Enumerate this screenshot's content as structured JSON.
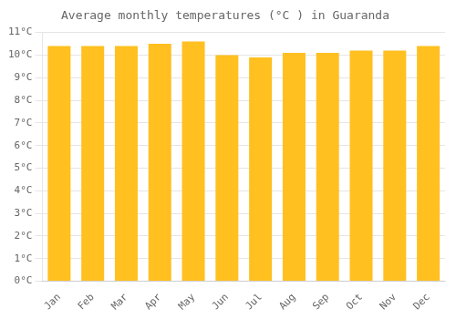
{
  "chart_data": {
    "type": "bar",
    "title": "Average monthly temperatures (°C ) in Guaranda",
    "categories": [
      "Jan",
      "Feb",
      "Mar",
      "Apr",
      "May",
      "Jun",
      "Jul",
      "Aug",
      "Sep",
      "Oct",
      "Nov",
      "Dec"
    ],
    "values": [
      10.4,
      10.4,
      10.4,
      10.5,
      10.6,
      10.0,
      9.9,
      10.1,
      10.1,
      10.2,
      10.2,
      10.4
    ],
    "color": "#FFC020",
    "ylim": [
      0,
      11
    ],
    "yticks": [
      {
        "value": 0,
        "label": "0°C"
      },
      {
        "value": 1,
        "label": "1°C"
      },
      {
        "value": 2,
        "label": "2°C"
      },
      {
        "value": 3,
        "label": "3°C"
      },
      {
        "value": 4,
        "label": "4°C"
      },
      {
        "value": 5,
        "label": "5°C"
      },
      {
        "value": 6,
        "label": "6°C"
      },
      {
        "value": 7,
        "label": "7°C"
      },
      {
        "value": 8,
        "label": "8°C"
      },
      {
        "value": 9,
        "label": "9°C"
      },
      {
        "value": 10,
        "label": "10°C"
      },
      {
        "value": 11,
        "label": "11°C"
      }
    ],
    "grid": true
  }
}
